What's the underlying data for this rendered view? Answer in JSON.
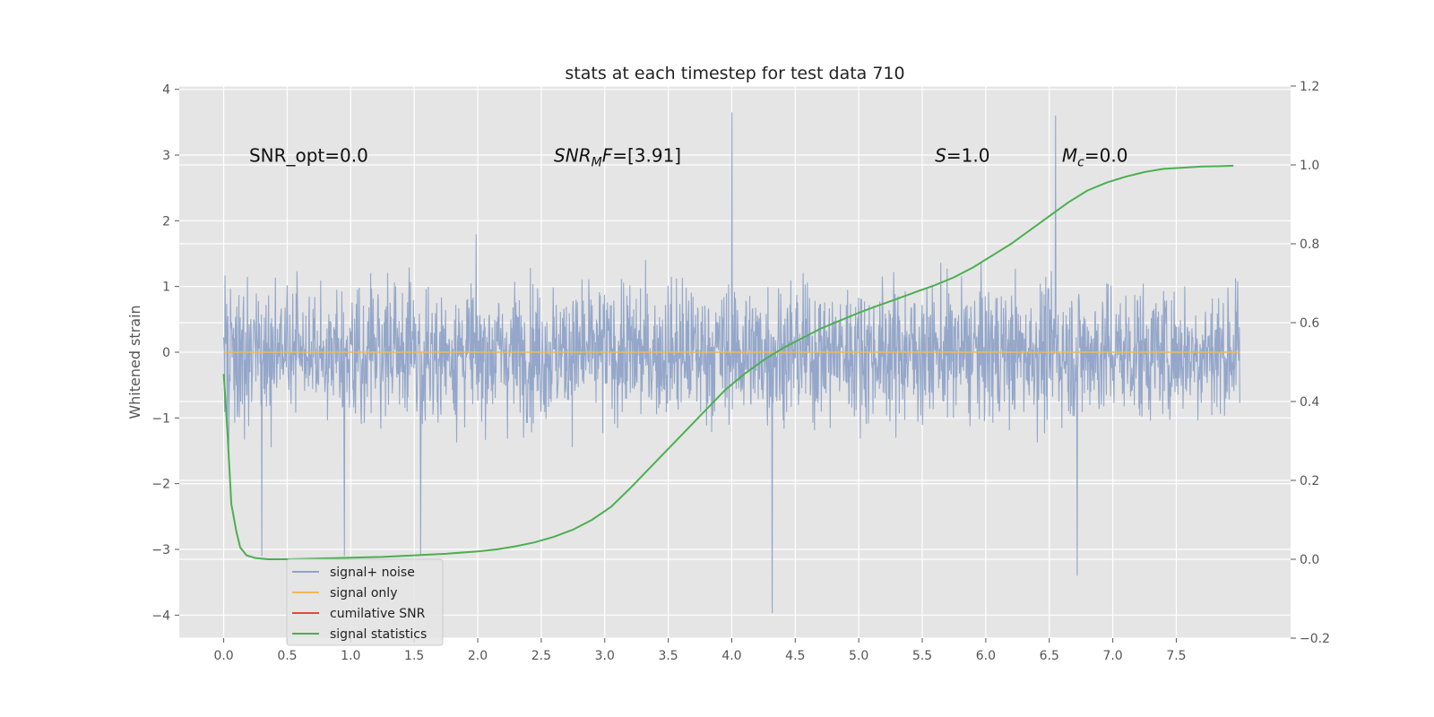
{
  "chart_data": {
    "type": "line",
    "title": "stats at each timestep for test data 710",
    "ylabel": "Whitened strain",
    "xlim": [
      -0.35,
      8.4
    ],
    "ylim": [
      -4.35,
      4.05
    ],
    "y2lim": [
      -0.2,
      1.2
    ],
    "x_ticks": [
      0.0,
      0.5,
      1.0,
      1.5,
      2.0,
      2.5,
      3.0,
      3.5,
      4.0,
      4.5,
      5.0,
      5.5,
      6.0,
      6.5,
      7.0,
      7.5
    ],
    "x_tick_labels": [
      "0.0",
      "0.5",
      "1.0",
      "1.5",
      "2.0",
      "2.5",
      "3.0",
      "3.5",
      "4.0",
      "4.5",
      "5.0",
      "5.5",
      "6.0",
      "6.5",
      "7.0",
      "7.5"
    ],
    "y_ticks": [
      -4,
      -3,
      -2,
      -1,
      0,
      1,
      2,
      3,
      4
    ],
    "y_tick_labels": [
      "−4",
      "−3",
      "−2",
      "−1",
      "0",
      "1",
      "2",
      "3",
      "4"
    ],
    "y2_ticks": [
      -0.2,
      0.0,
      0.2,
      0.4,
      0.6,
      0.8,
      1.0,
      1.2
    ],
    "y2_tick_labels": [
      "−0.2",
      "0.0",
      "0.2",
      "0.4",
      "0.6",
      "0.8",
      "1.0",
      "1.2"
    ],
    "grid": true,
    "legend_position": "lower-left",
    "annotations": [
      {
        "id": "snr-opt",
        "text": "SNR_opt=0.0",
        "x": 0.2,
        "y": 2.9
      },
      {
        "id": "snr-mf",
        "text": "SNR_MF=[3.91]",
        "x": 2.6,
        "y": 2.9
      },
      {
        "id": "s",
        "text": "S=1.0",
        "x": 5.6,
        "y": 2.9
      },
      {
        "id": "mc",
        "text": "M_c=0.0",
        "x": 6.6,
        "y": 2.9
      }
    ],
    "series": [
      {
        "name": "signal+ noise",
        "color": "#8fa3c8",
        "axis": "left",
        "x_range": [
          0.0,
          8.0
        ],
        "typical_range": [
          -1.5,
          1.6
        ],
        "extremes": [
          [
            0.3,
            -3.1
          ],
          [
            0.95,
            -3.1
          ],
          [
            1.55,
            -3.1
          ],
          [
            4.0,
            3.65
          ],
          [
            4.32,
            -3.97
          ],
          [
            6.72,
            -3.4
          ],
          [
            6.55,
            3.6
          ]
        ]
      },
      {
        "name": "signal only",
        "color": "#f0b95a",
        "axis": "left",
        "x": [
          0.0,
          8.0
        ],
        "y": [
          0.0,
          0.0
        ]
      },
      {
        "name": "cumilative SNR",
        "color": "#e24a33",
        "axis": "left",
        "x": [],
        "y": []
      },
      {
        "name": "signal statistics",
        "color": "#4caf50",
        "axis": "right",
        "x": [
          0.0,
          0.03,
          0.06,
          0.1,
          0.13,
          0.18,
          0.25,
          0.35,
          0.5,
          0.75,
          1.0,
          1.25,
          1.5,
          1.75,
          2.0,
          2.15,
          2.3,
          2.45,
          2.6,
          2.75,
          2.9,
          3.05,
          3.2,
          3.35,
          3.5,
          3.65,
          3.8,
          3.95,
          4.1,
          4.25,
          4.4,
          4.55,
          4.7,
          4.85,
          5.0,
          5.15,
          5.3,
          5.45,
          5.6,
          5.75,
          5.9,
          6.05,
          6.2,
          6.35,
          6.5,
          6.65,
          6.8,
          6.95,
          7.1,
          7.25,
          7.4,
          7.55,
          7.7,
          7.85,
          7.95
        ],
        "y": [
          0.47,
          0.32,
          0.14,
          0.07,
          0.03,
          0.01,
          0.003,
          0.0,
          0.0,
          0.002,
          0.004,
          0.006,
          0.01,
          0.014,
          0.02,
          0.025,
          0.033,
          0.043,
          0.057,
          0.075,
          0.1,
          0.133,
          0.18,
          0.23,
          0.28,
          0.33,
          0.38,
          0.43,
          0.47,
          0.505,
          0.535,
          0.56,
          0.585,
          0.605,
          0.625,
          0.643,
          0.66,
          0.678,
          0.695,
          0.715,
          0.74,
          0.77,
          0.8,
          0.835,
          0.87,
          0.905,
          0.935,
          0.955,
          0.97,
          0.982,
          0.99,
          0.993,
          0.996,
          0.997,
          0.998
        ]
      }
    ]
  }
}
